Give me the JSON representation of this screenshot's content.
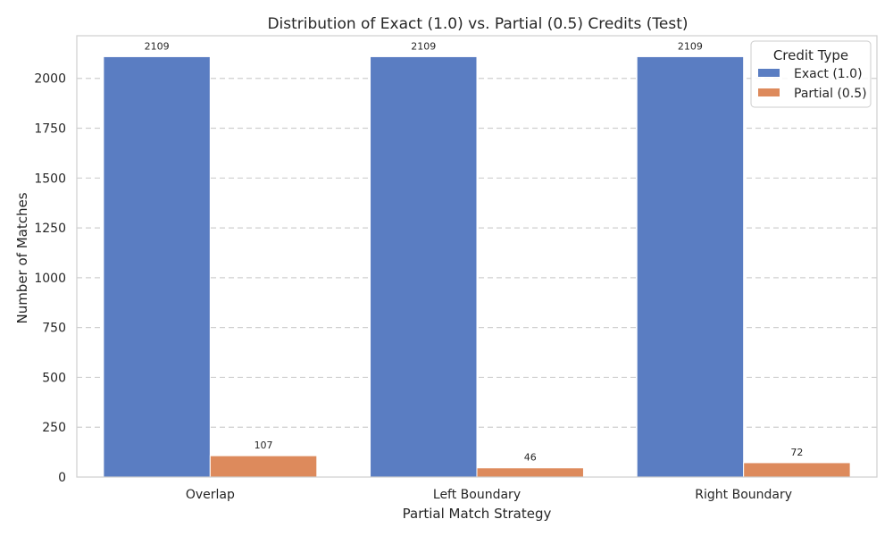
{
  "chart_data": {
    "type": "bar",
    "title": "Distribution of Exact (1.0) vs. Partial (0.5) Credits (Test)",
    "xlabel": "Partial Match Strategy",
    "ylabel": "Number of Matches",
    "categories": [
      "Overlap",
      "Left Boundary",
      "Right Boundary"
    ],
    "series": [
      {
        "name": "Exact (1.0)",
        "values": [
          2109,
          2109,
          2109
        ],
        "color": "#5a7dc2"
      },
      {
        "name": "Partial (0.5)",
        "values": [
          107,
          46,
          72
        ],
        "color": "#dd8a5c"
      }
    ],
    "ylim": [
      0,
      2214
    ],
    "yticks": [
      0,
      250,
      500,
      750,
      1000,
      1250,
      1500,
      1750,
      2000
    ],
    "grid": "y-dashed",
    "legend": {
      "title": "Credit Type",
      "position": "top-right"
    },
    "data_labels": true
  }
}
